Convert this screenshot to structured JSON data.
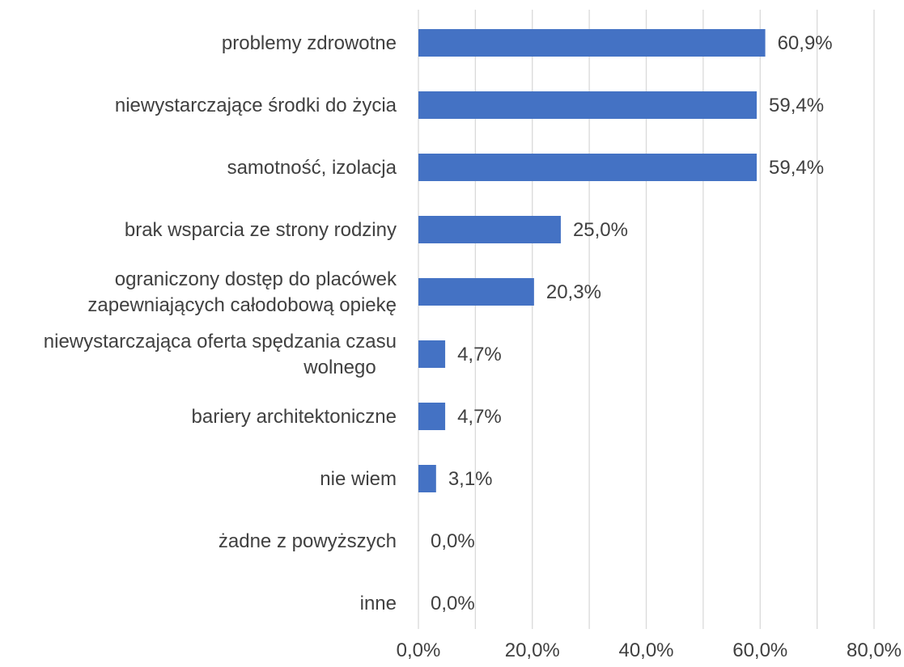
{
  "chart_data": {
    "type": "bar",
    "orientation": "horizontal",
    "categories": [
      "problemy zdrowotne",
      "niewystarczające środki do życia",
      "samotność, izolacja",
      "brak wsparcia ze strony rodziny",
      "ograniczony dostęp do placówek zapewniających całodobową opiekę",
      "niewystarczająca oferta spędzania czasu wolnego",
      "bariery architektoniczne",
      "nie wiem",
      "żadne z powyższych",
      "inne"
    ],
    "category_lines": [
      [
        "problemy zdrowotne"
      ],
      [
        "niewystarczające środki do życia"
      ],
      [
        "samotność, izolacja"
      ],
      [
        "brak wsparcia ze strony rodziny"
      ],
      [
        "ograniczony dostęp do placówek",
        "zapewniających całodobową opiekę"
      ],
      [
        "niewystarczająca oferta spędzania czasu",
        "wolnego"
      ],
      [
        "bariery architektoniczne"
      ],
      [
        "nie wiem"
      ],
      [
        "żadne z powyższych"
      ],
      [
        "inne"
      ]
    ],
    "values": [
      60.9,
      59.4,
      59.4,
      25.0,
      20.3,
      4.7,
      4.7,
      3.1,
      0.0,
      0.0
    ],
    "value_labels": [
      "60,9%",
      "59,4%",
      "59,4%",
      "25,0%",
      "20,3%",
      "4,7%",
      "4,7%",
      "3,1%",
      "0,0%",
      "0,0%"
    ],
    "xlim": [
      0,
      80
    ],
    "x_ticks": [
      0,
      20,
      40,
      60,
      80
    ],
    "x_tick_labels": [
      "0,0%",
      "20,0%",
      "40,0%",
      "60,0%",
      "80,0%"
    ],
    "grid": true,
    "bar_color": "#4472c4",
    "title": "",
    "xlabel": "",
    "ylabel": ""
  }
}
